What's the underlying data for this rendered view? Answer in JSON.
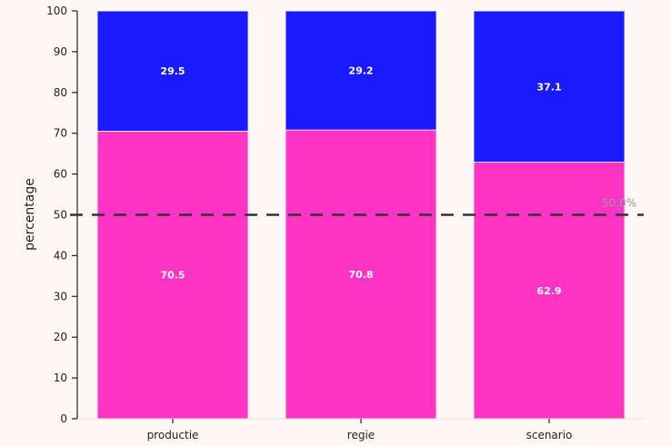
{
  "chart_data": {
    "type": "bar",
    "stacked": true,
    "categories": [
      "productie",
      "regie",
      "scenario"
    ],
    "series": [
      {
        "values": [
          70.5,
          70.8,
          62.9
        ],
        "color": "#ff33c4"
      },
      {
        "values": [
          29.5,
          29.2,
          37.1
        ],
        "color": "#1a1aff"
      }
    ],
    "ylabel": "percentage",
    "ylim": [
      0,
      100
    ],
    "yticks": [
      0,
      10,
      20,
      30,
      40,
      50,
      60,
      70,
      80,
      90,
      100
    ],
    "reference_line": {
      "value": 50,
      "label": "50.0%",
      "style": "dashed",
      "color": "#333333"
    },
    "grid": false,
    "background": "#fff7f5"
  }
}
